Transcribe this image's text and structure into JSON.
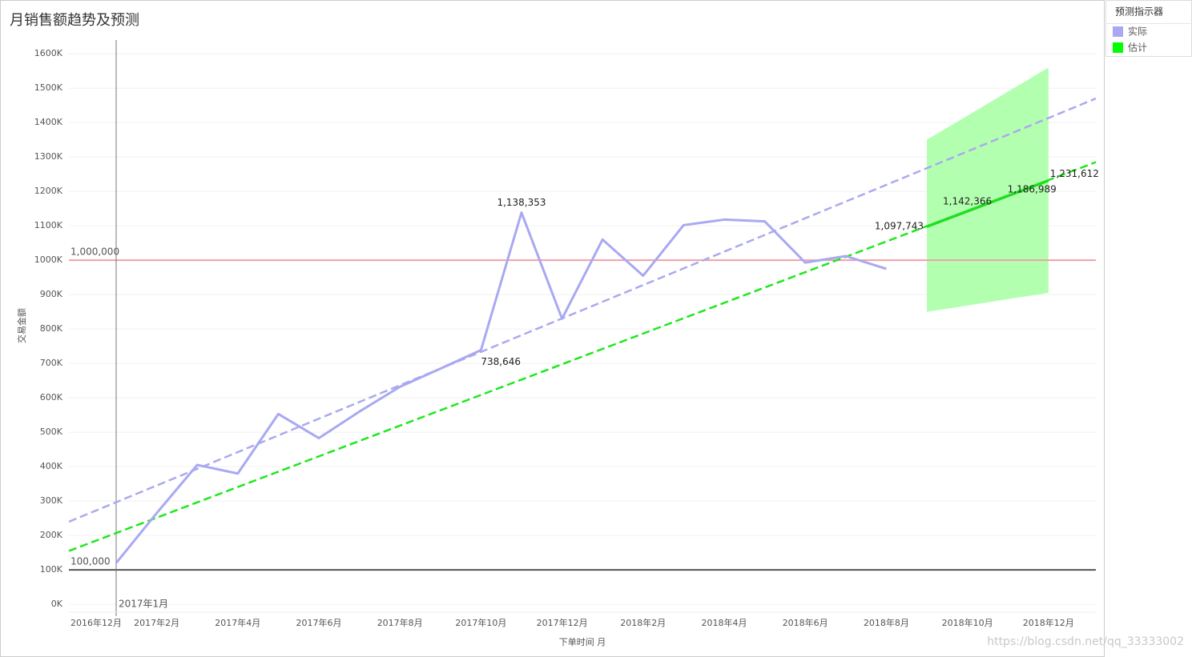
{
  "chart_data": {
    "type": "line",
    "title": "月销售额趋势及预测",
    "x_label": "下单时间 月",
    "y_label": "交易金额",
    "categories": [
      "2016年12月",
      null,
      "2017年2月",
      null,
      "2017年4月",
      null,
      "2017年6月",
      null,
      "2017年8月",
      null,
      "2017年10月",
      null,
      "2017年12月",
      null,
      "2018年2月",
      null,
      "2018年4月",
      null,
      "2018年6月",
      null,
      "2018年8月",
      null,
      "2018年10月",
      null,
      "2018年12月",
      null
    ],
    "series": [
      {
        "name": "实际",
        "color": "#a9a9f2",
        "values": [
          null,
          120000,
          265000,
          405000,
          380000,
          553000,
          483000,
          560000,
          632000,
          685000,
          738646,
          1138353,
          830000,
          1060000,
          955000,
          1102000,
          1118000,
          1113000,
          993000,
          1012000,
          975000,
          null,
          null,
          null,
          null,
          null
        ],
        "value_labels": [
          null,
          null,
          null,
          null,
          null,
          null,
          null,
          null,
          null,
          null,
          "738,646",
          "1,138,353",
          null,
          null,
          null,
          null,
          null,
          null,
          null,
          null,
          null,
          null,
          null,
          null,
          null,
          null
        ]
      },
      {
        "name": "估计",
        "color": "#00ff00",
        "values": [
          null,
          null,
          null,
          null,
          null,
          null,
          null,
          null,
          null,
          null,
          null,
          null,
          null,
          null,
          null,
          null,
          null,
          null,
          null,
          null,
          null,
          1097743,
          1142366,
          1186989,
          1231612,
          null
        ],
        "value_labels": [
          null,
          null,
          null,
          null,
          null,
          null,
          null,
          null,
          null,
          null,
          null,
          null,
          null,
          null,
          null,
          null,
          null,
          null,
          null,
          null,
          null,
          "1,097,743",
          "1,142,366",
          "1,186,989",
          "1,231,612",
          null
        ]
      }
    ],
    "forecast_band": {
      "color": "#b3ffb0",
      "upper": [
        null,
        null,
        null,
        null,
        null,
        null,
        null,
        null,
        null,
        null,
        null,
        null,
        null,
        null,
        null,
        null,
        null,
        null,
        null,
        null,
        null,
        1350000,
        1420000,
        1490000,
        1560000,
        null
      ],
      "lower": [
        null,
        null,
        null,
        null,
        null,
        null,
        null,
        null,
        null,
        null,
        null,
        null,
        null,
        null,
        null,
        null,
        null,
        null,
        null,
        null,
        null,
        850000,
        868000,
        887000,
        905000,
        null
      ]
    },
    "trend_lines": [
      {
        "color": "#aaaaee",
        "values": [
          240000,
          1470000
        ]
      },
      {
        "color": "#1ee81e",
        "values": [
          155000,
          1285000
        ]
      }
    ],
    "reference_lines": [
      {
        "value": 1000000,
        "label": "1,000,000",
        "color": "#f0a0a8"
      },
      {
        "value": 100000,
        "label": "100,000",
        "color": "#555555"
      }
    ],
    "x_reference": {
      "label": "2017年1月",
      "color": "#777777"
    },
    "ylim": [
      -23000,
      1640000
    ],
    "yticks": [
      {
        "value": 0,
        "label": "0K"
      },
      {
        "value": 100000,
        "label": "100K"
      },
      {
        "value": 200000,
        "label": "200K"
      },
      {
        "value": 300000,
        "label": "300K"
      },
      {
        "value": 400000,
        "label": "400K"
      },
      {
        "value": 500000,
        "label": "500K"
      },
      {
        "value": 600000,
        "label": "600K"
      },
      {
        "value": 700000,
        "label": "700K"
      },
      {
        "value": 800000,
        "label": "800K"
      },
      {
        "value": 900000,
        "label": "900K"
      },
      {
        "value": 1000000,
        "label": "1000K"
      },
      {
        "value": 1100000,
        "label": "1100K"
      },
      {
        "value": 1200000,
        "label": "1200K"
      },
      {
        "value": 1300000,
        "label": "1300K"
      },
      {
        "value": 1400000,
        "label": "1400K"
      },
      {
        "value": 1500000,
        "label": "1500K"
      },
      {
        "value": 1600000,
        "label": "1600K"
      }
    ],
    "grid": true,
    "legend": {
      "title": "预测指示器",
      "position": "top-right"
    },
    "watermark": "https://blog.csdn.net/qq_33333002"
  }
}
